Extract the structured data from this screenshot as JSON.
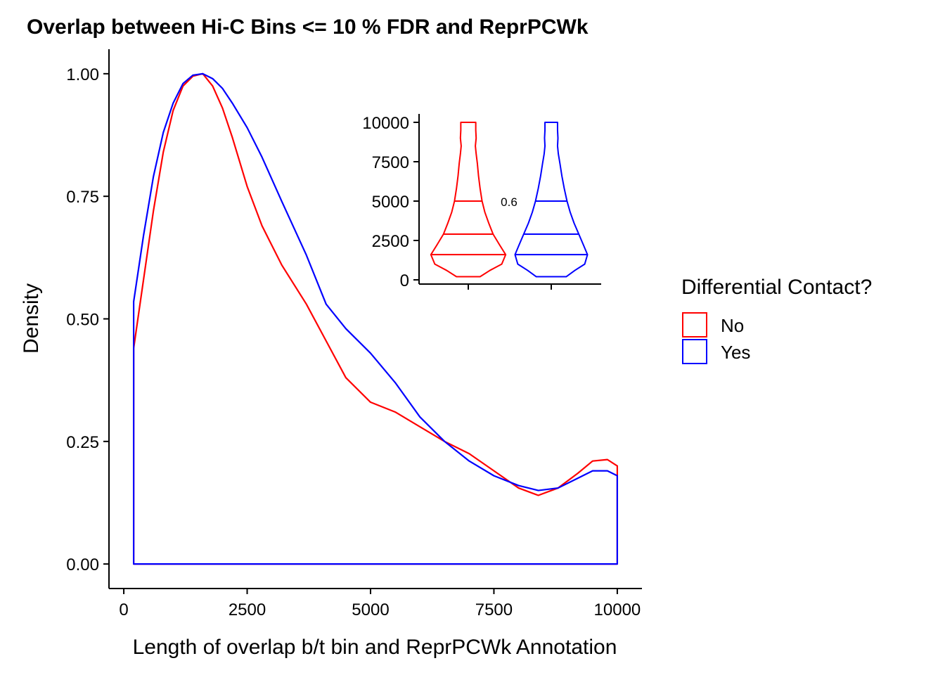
{
  "chart_data": [
    {
      "type": "line",
      "title": "Overlap between Hi-C Bins <= 10 % FDR and ReprPCWk",
      "xlabel": "Length of overlap b/t bin and ReprPCWk Annotation",
      "ylabel": "Density",
      "xlim": [
        -300,
        10500
      ],
      "ylim": [
        -0.05,
        1.05
      ],
      "x_ticks": [
        0,
        2500,
        5000,
        7500,
        10000
      ],
      "x_tick_labels": [
        "0",
        "2500",
        "5000",
        "7500",
        "10000"
      ],
      "y_ticks": [
        0,
        0.25,
        0.5,
        0.75,
        1.0
      ],
      "y_tick_labels": [
        "0.00",
        "0.25",
        "0.50",
        "0.75",
        "1.00"
      ],
      "grid": false,
      "legend": {
        "title": "Differential Contact?",
        "placement": "right",
        "entries": [
          "No",
          "Yes"
        ]
      },
      "series": [
        {
          "name": "No",
          "color": "#FF0000",
          "x": [
            200,
            400,
            600,
            800,
            1000,
            1200,
            1400,
            1600,
            1800,
            2000,
            2200,
            2500,
            2800,
            3200,
            3700,
            4100,
            4500,
            5000,
            5500,
            6000,
            6500,
            7000,
            7500,
            8000,
            8400,
            8800,
            9200,
            9500,
            9800,
            10000
          ],
          "y": [
            0.44,
            0.58,
            0.72,
            0.84,
            0.925,
            0.975,
            0.995,
            1.0,
            0.975,
            0.93,
            0.87,
            0.77,
            0.69,
            0.61,
            0.53,
            0.455,
            0.38,
            0.33,
            0.31,
            0.28,
            0.25,
            0.225,
            0.19,
            0.155,
            0.14,
            0.155,
            0.185,
            0.21,
            0.213,
            0.2
          ]
        },
        {
          "name": "Yes",
          "color": "#0000FF",
          "x": [
            200,
            400,
            600,
            800,
            1000,
            1200,
            1400,
            1600,
            1800,
            2000,
            2200,
            2500,
            2800,
            3200,
            3700,
            4100,
            4500,
            5000,
            5500,
            6000,
            6500,
            7000,
            7500,
            8000,
            8400,
            8800,
            9200,
            9500,
            9800,
            10000
          ],
          "y": [
            0.535,
            0.67,
            0.79,
            0.88,
            0.94,
            0.98,
            0.997,
            1.0,
            0.99,
            0.97,
            0.94,
            0.89,
            0.83,
            0.74,
            0.63,
            0.53,
            0.48,
            0.43,
            0.37,
            0.3,
            0.25,
            0.21,
            0.18,
            0.16,
            0.15,
            0.155,
            0.175,
            0.19,
            0.19,
            0.18
          ]
        }
      ]
    },
    {
      "type": "violin",
      "ylim": [
        0,
        10000
      ],
      "y_ticks": [
        0,
        2500,
        5000,
        7500,
        10000
      ],
      "y_tick_labels": [
        "0",
        "2500",
        "5000",
        "7500",
        "10000"
      ],
      "annotation": "0.6",
      "groups": [
        {
          "name": "No",
          "color": "#FF0000",
          "quantiles": [
            1600,
            2900,
            5000
          ],
          "profile_y": [
            200,
            600,
            1000,
            1600,
            2200,
            2900,
            3600,
            4300,
            5000,
            5800,
            6600,
            7400,
            8000,
            8500,
            9000,
            9500,
            9800,
            10000
          ],
          "profile_w": [
            0.3,
            0.55,
            0.85,
            0.95,
            0.8,
            0.63,
            0.52,
            0.42,
            0.35,
            0.3,
            0.26,
            0.23,
            0.2,
            0.18,
            0.2,
            0.19,
            0.19,
            0.19
          ]
        },
        {
          "name": "Yes",
          "color": "#0000FF",
          "quantiles": [
            1600,
            2900,
            5000
          ],
          "profile_y": [
            200,
            600,
            1000,
            1600,
            2200,
            2900,
            3600,
            4300,
            5000,
            5800,
            6600,
            7400,
            8000,
            8500,
            9000,
            9500,
            9800,
            10000
          ],
          "profile_w": [
            0.38,
            0.6,
            0.85,
            0.92,
            0.82,
            0.7,
            0.58,
            0.48,
            0.4,
            0.33,
            0.27,
            0.22,
            0.18,
            0.16,
            0.17,
            0.16,
            0.16,
            0.16
          ]
        }
      ]
    }
  ]
}
